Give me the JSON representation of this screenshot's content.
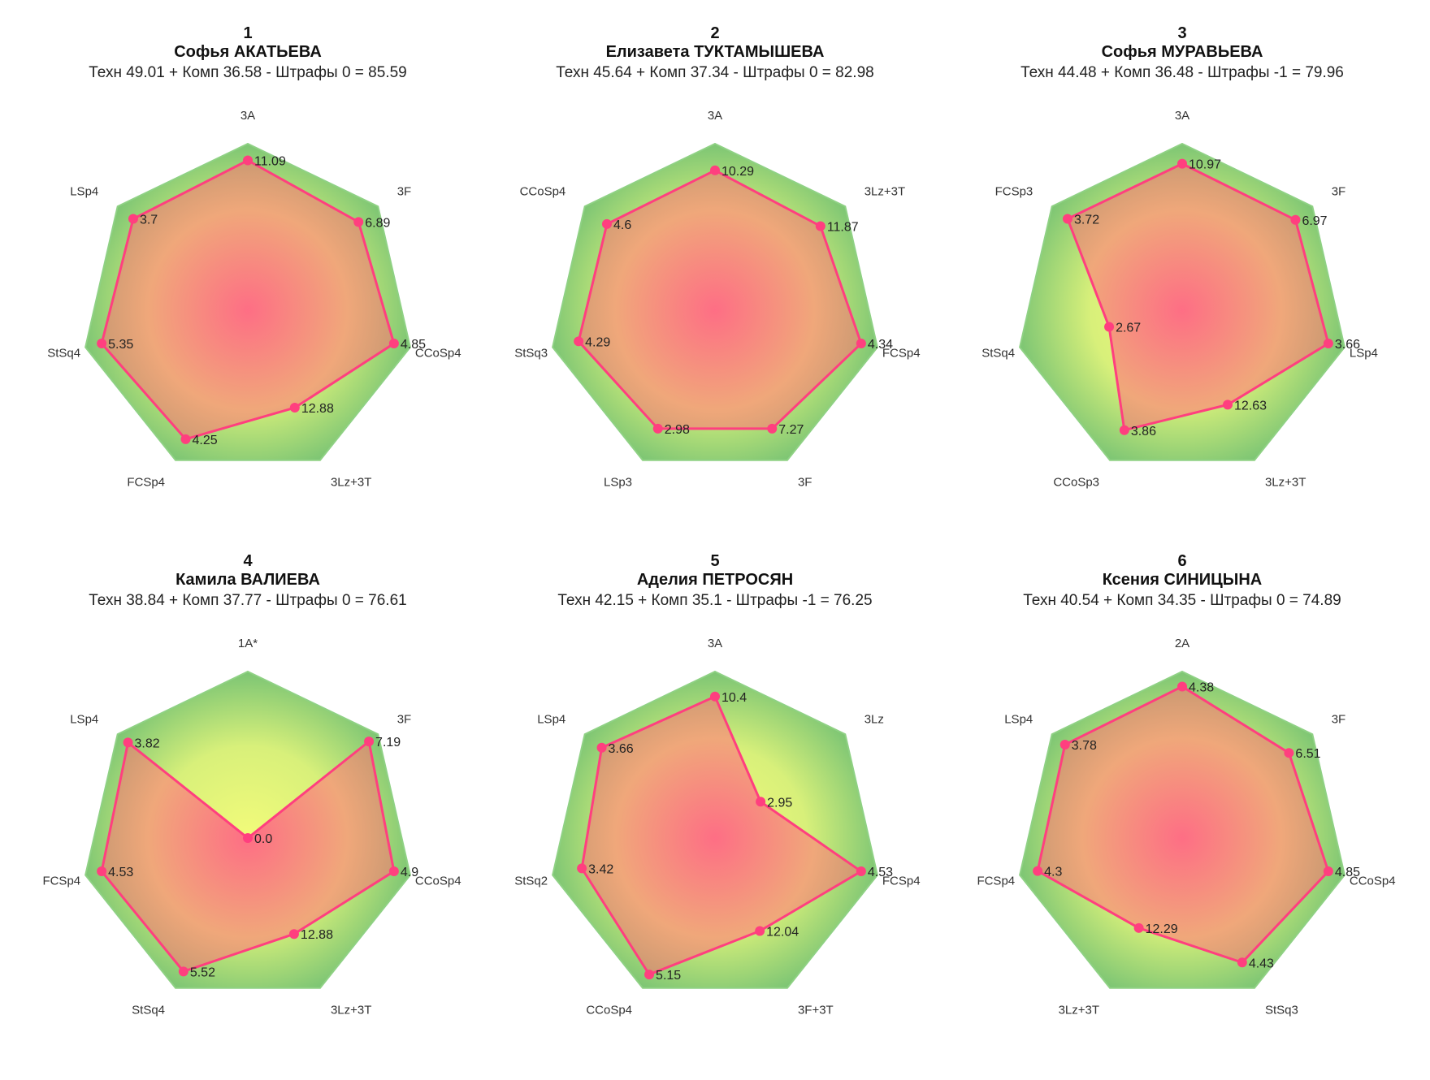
{
  "chart_data": [
    {
      "type": "radar",
      "rank": "1",
      "name": "Софья АКАТЬЕВА",
      "score": "Техн 49.01 + Комп 36.58 - Штрафы 0 = 85.59",
      "axes": [
        "3A",
        "3F",
        "CCoSp4",
        "3Lz+3T",
        "FCSp4",
        "StSq4",
        "LSp4"
      ],
      "values": [
        11.09,
        6.89,
        4.85,
        12.88,
        4.25,
        5.35,
        3.7
      ],
      "labels": [
        "11.09",
        "6.89",
        "4.85",
        "12.88",
        "4.25",
        "5.35",
        "3.7"
      ],
      "fractions": [
        0.9,
        0.85,
        0.9,
        0.65,
        0.86,
        0.9,
        0.88
      ]
    },
    {
      "type": "radar",
      "rank": "2",
      "name": "Елизавета ТУКТАМЫШЕВА",
      "score": "Техн 45.64 + Комп 37.34 - Штрафы 0 = 82.98",
      "axes": [
        "3A",
        "3Lz+3T",
        "FCSp4",
        "3F",
        "LSp3",
        "StSq3",
        "CCoSp4"
      ],
      "values": [
        10.29,
        11.87,
        4.34,
        7.27,
        2.98,
        4.29,
        4.6
      ],
      "labels": [
        "10.29",
        "11.87",
        "4.34",
        "7.27",
        "2.98",
        "4.29",
        "4.6"
      ],
      "fractions": [
        0.84,
        0.81,
        0.9,
        0.79,
        0.79,
        0.84,
        0.83
      ]
    },
    {
      "type": "radar",
      "rank": "3",
      "name": "Софья МУРАВЬЕВА",
      "score": "Техн 44.48 + Комп 36.48 - Штрафы -1 = 79.96",
      "axes": [
        "3A",
        "3F",
        "LSp4",
        "3Lz+3T",
        "CCoSp3",
        "StSq4",
        "FCSp3"
      ],
      "values": [
        10.97,
        6.97,
        3.66,
        12.63,
        3.86,
        2.67,
        3.72
      ],
      "labels": [
        "10.97",
        "6.97",
        "3.66",
        "12.63",
        "3.86",
        "2.67",
        "3.72"
      ],
      "fractions": [
        0.88,
        0.87,
        0.9,
        0.63,
        0.8,
        0.45,
        0.88
      ]
    },
    {
      "type": "radar",
      "rank": "4",
      "name": "Камила ВАЛИЕВА",
      "score": "Техн 38.84 + Комп 37.77 - Штрафы 0 = 76.61",
      "axes": [
        "1A*",
        "3F",
        "CCoSp4",
        "3Lz+3T",
        "StSq4",
        "FCSp4",
        "LSp4"
      ],
      "values": [
        0.0,
        7.19,
        4.9,
        12.88,
        5.52,
        4.53,
        3.82
      ],
      "labels": [
        "0.0",
        "7.19",
        "4.9",
        "12.88",
        "5.52",
        "4.53",
        "3.82"
      ],
      "fractions": [
        0.0,
        0.93,
        0.9,
        0.64,
        0.89,
        0.9,
        0.92
      ]
    },
    {
      "type": "radar",
      "rank": "5",
      "name": "Аделия ПЕТРОСЯН",
      "score": "Техн 42.15 + Комп 35.1 - Штрафы -1 = 76.25",
      "axes": [
        "3A",
        "3Lz",
        "FCSp4",
        "3F+3T",
        "CCoSp4",
        "StSq2",
        "LSp4"
      ],
      "values": [
        10.4,
        2.95,
        4.53,
        12.04,
        5.15,
        3.42,
        3.66
      ],
      "labels": [
        "10.4",
        "2.95",
        "4.53",
        "12.04",
        "5.15",
        "3.42",
        "3.66"
      ],
      "fractions": [
        0.85,
        0.35,
        0.9,
        0.62,
        0.91,
        0.82,
        0.87
      ]
    },
    {
      "type": "radar",
      "rank": "6",
      "name": "Ксения СИНИЦЫНА",
      "score": "Техн 40.54 + Комп 34.35 - Штрафы 0 = 74.89",
      "axes": [
        "2A",
        "3F",
        "CCoSp4",
        "StSq3",
        "3Lz+3T",
        "FCSp4",
        "LSp4"
      ],
      "values": [
        4.38,
        6.51,
        4.85,
        4.43,
        12.29,
        4.3,
        3.78
      ],
      "labels": [
        "4.38",
        "6.51",
        "4.85",
        "4.43",
        "12.29",
        "4.3",
        "3.78"
      ],
      "fractions": [
        0.91,
        0.82,
        0.9,
        0.83,
        0.6,
        0.89,
        0.9
      ]
    }
  ],
  "colors": {
    "outer_polygon_edge": "#7cc574",
    "outer_polygon_center": "#f2fb7a",
    "data_line": "#ff3f7f",
    "data_fill_center": "#ff5f86",
    "data_fill_edge": "#c89070",
    "marker": "#ff3f7f"
  }
}
